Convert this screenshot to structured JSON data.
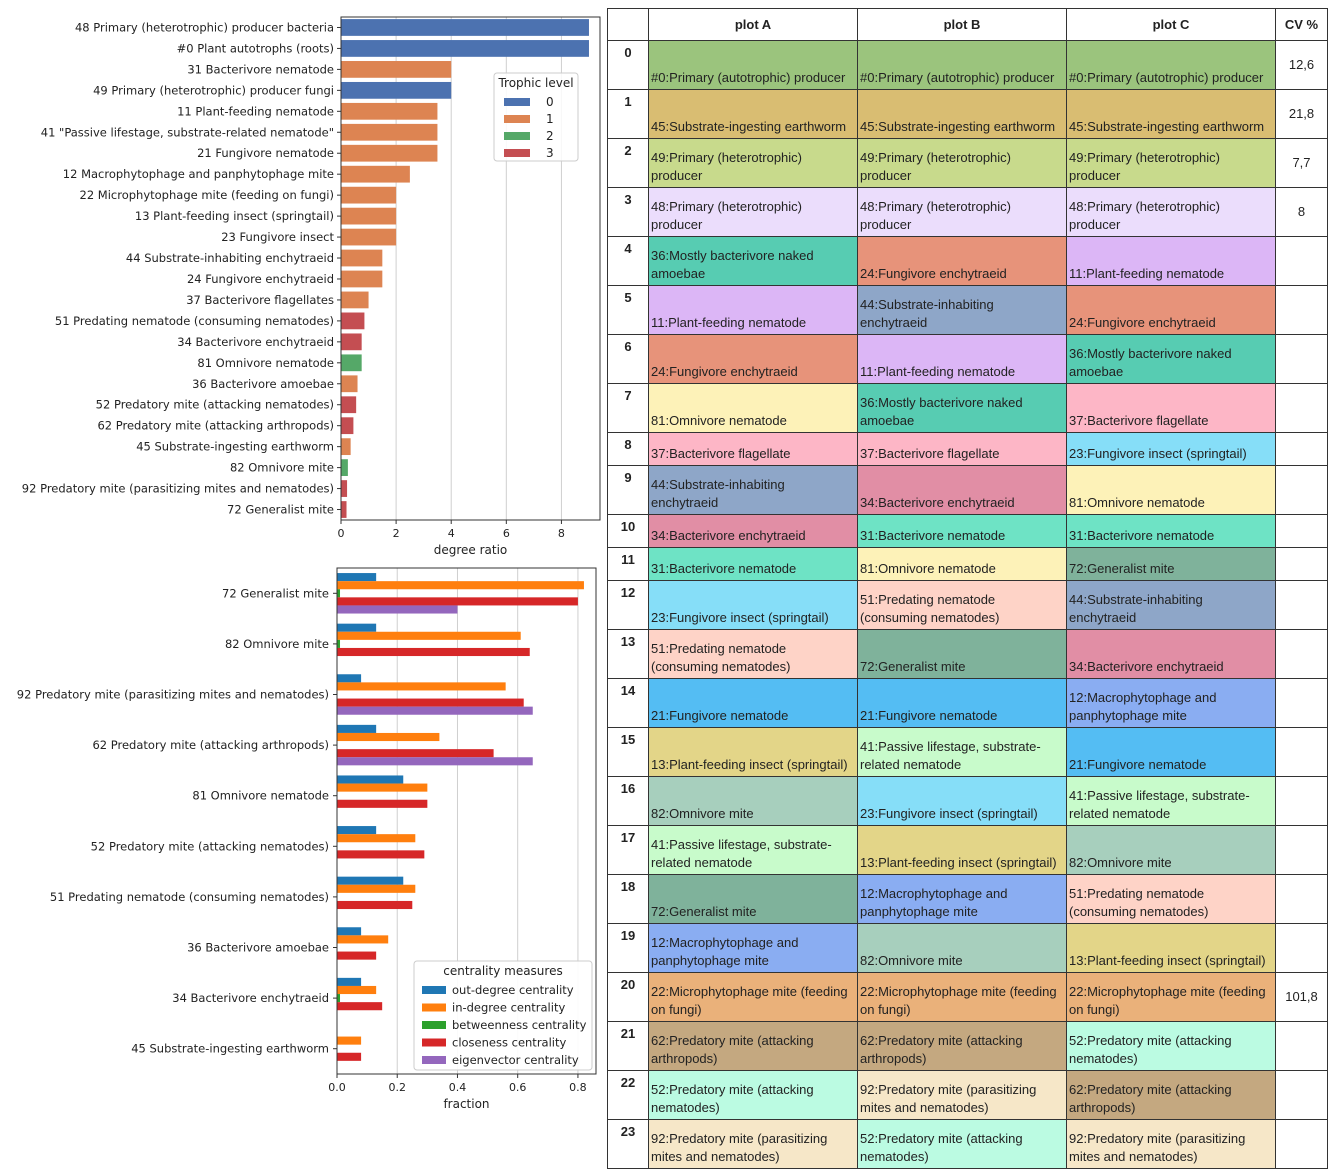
{
  "colors": {
    "trophic": {
      "0": "#4c72b0",
      "1": "#dd8452",
      "2": "#55a868",
      "3": "#c44e52"
    },
    "centrality": [
      "#1f77b4",
      "#ff7f0e",
      "#2ca02c",
      "#d62728",
      "#9467bd"
    ],
    "nodes": {
      "0": "#9bc47d",
      "45": "#d9bd72",
      "49": "#c8da8c",
      "48": "#ebddfc",
      "36": "#57ccb2",
      "24": "#e7937a",
      "11": "#dcb6f6",
      "44": "#8ea6c8",
      "81": "#fdf2b8",
      "37": "#fdb6c6",
      "34": "#e18ea5",
      "31": "#6ee3c5",
      "23": "#86def8",
      "51": "#fed3c7",
      "21": "#54bdf3",
      "13": "#e3d588",
      "82": "#a7cfbd",
      "41": "#c8fbcb",
      "72": "#7fb29b",
      "12": "#8aadf2",
      "22": "#eab17a",
      "62": "#c4a880",
      "52": "#bbfbe2",
      "92": "#f6e7c8"
    }
  },
  "chart_data": [
    {
      "type": "bar",
      "orientation": "horizontal",
      "categories": [
        "48 Primary (heterotrophic) producer bacteria",
        "#0 Plant autotrophs (roots)",
        "31 Bacterivore nematode",
        "49 Primary (heterotrophic) producer fungi",
        "11 Plant-feeding nematode",
        "41 \"Passive lifestage, substrate-related nematode\"",
        "21 Fungivore nematode",
        "12 Macrophytophage and panphytophage mite",
        "22 Microphytophage mite (feeding on fungi)",
        "13 Plant-feeding insect (springtail)",
        "23 Fungivore insect",
        "44 Substrate-inhabiting enchytraeid",
        "24 Fungivore enchytraeid",
        "37 Bacterivore flagellates",
        "51 Predating nematode (consuming nematodes)",
        "34 Bacterivore enchytraeid",
        "81 Omnivore nematode",
        "36 Bacterivore amoebae",
        "52 Predatory mite (attacking nematodes)",
        "62 Predatory mite (attacking arthropods)",
        "45 Substrate-ingesting earthworm",
        "82 Omnivore mite",
        "92 Predatory mite (parasitizing mites and nematodes)",
        "72 Generalist mite"
      ],
      "values": [
        9.0,
        9.0,
        4.0,
        4.0,
        3.5,
        3.5,
        3.5,
        2.5,
        2.0,
        2.0,
        2.0,
        1.5,
        1.5,
        1.0,
        0.85,
        0.75,
        0.75,
        0.6,
        0.55,
        0.45,
        0.35,
        0.25,
        0.22,
        0.2
      ],
      "trophic_level": [
        0,
        0,
        1,
        0,
        1,
        1,
        1,
        1,
        1,
        1,
        1,
        1,
        1,
        1,
        3,
        3,
        2,
        1,
        3,
        3,
        1,
        2,
        3,
        3
      ],
      "xlabel": "degree ratio",
      "xlim": [
        0,
        9.4
      ],
      "xticks": [
        "0",
        "2",
        "4",
        "6",
        "8"
      ],
      "legend": {
        "title": "Trophic level",
        "entries": [
          "0",
          "1",
          "2",
          "3"
        ],
        "placement": "upper-right"
      },
      "grid": "x"
    },
    {
      "type": "bar",
      "orientation": "horizontal",
      "categories": [
        "72 Generalist mite",
        "82 Omnivore mite",
        "92 Predatory mite (parasitizing mites and nematodes)",
        "62 Predatory mite (attacking arthropods)",
        "81 Omnivore nematode",
        "52 Predatory mite (attacking nematodes)",
        "51 Predating nematode (consuming nematodes)",
        "36 Bacterivore amoebae",
        "34 Bacterivore enchytraeid",
        "45 Substrate-ingesting earthworm"
      ],
      "series": [
        {
          "name": "out-degree centrality",
          "values": [
            0.13,
            0.13,
            0.08,
            0.13,
            0.22,
            0.13,
            0.22,
            0.08,
            0.08,
            0.0
          ]
        },
        {
          "name": "in-degree centrality",
          "values": [
            0.82,
            0.61,
            0.56,
            0.34,
            0.3,
            0.26,
            0.26,
            0.17,
            0.13,
            0.08
          ]
        },
        {
          "name": "betweenness centrality",
          "values": [
            0.01,
            0.01,
            0.0,
            0.0,
            0.0,
            0.0,
            0.0,
            0.0,
            0.01,
            0.0
          ]
        },
        {
          "name": "closeness centrality",
          "values": [
            0.8,
            0.64,
            0.62,
            0.52,
            0.3,
            0.29,
            0.25,
            0.13,
            0.15,
            0.08
          ]
        },
        {
          "name": "eigenvector centrality",
          "values": [
            0.4,
            0.0,
            0.65,
            0.65,
            0.0,
            0.0,
            0.0,
            0.0,
            0.0,
            0.0
          ]
        }
      ],
      "xlabel": "fraction",
      "xlim": [
        0,
        0.86
      ],
      "xticks": [
        "0.0",
        "0.2",
        "0.4",
        "0.6",
        "0.8"
      ],
      "legend": {
        "title": "centrality measures",
        "placement": "lower-right"
      },
      "grid": "x"
    }
  ],
  "table": {
    "headers": [
      "",
      "plot A",
      "plot B",
      "plot C",
      "CV %"
    ],
    "rows": [
      {
        "rank": "0",
        "a": "#0:Primary (autotrophic) producer",
        "ac": "0",
        "b": "#0:Primary (autotrophic) producer",
        "bc": "0",
        "c": "#0:Primary (autotrophic) producer",
        "cc": "0",
        "cv": "12,6"
      },
      {
        "rank": "1",
        "a": "45:Substrate-ingesting earthworm",
        "ac": "45",
        "b": "45:Substrate-ingesting earthworm",
        "bc": "45",
        "c": "45:Substrate-ingesting earthworm",
        "cc": "45",
        "cv": "21,8"
      },
      {
        "rank": "2",
        "a": "49:Primary (heterotrophic) producer",
        "ac": "49",
        "b": "49:Primary (heterotrophic) producer",
        "bc": "49",
        "c": "49:Primary (heterotrophic) producer",
        "cc": "49",
        "cv": "7,7"
      },
      {
        "rank": "3",
        "a": "48:Primary (heterotrophic) producer",
        "ac": "48",
        "b": "48:Primary (heterotrophic) producer",
        "bc": "48",
        "c": "48:Primary (heterotrophic) producer",
        "cc": "48",
        "cv": "8"
      },
      {
        "rank": "4",
        "a": "36:Mostly bacterivore naked amoebae",
        "ac": "36",
        "b": "24:Fungivore enchytraeid",
        "bc": "24",
        "c": "11:Plant-feeding nematode",
        "cc": "11",
        "cv": ""
      },
      {
        "rank": "5",
        "a": "11:Plant-feeding nematode",
        "ac": "11",
        "b": "44:Substrate-inhabiting enchytraeid",
        "bc": "44",
        "c": "24:Fungivore enchytraeid",
        "cc": "24",
        "cv": ""
      },
      {
        "rank": "6",
        "a": "24:Fungivore enchytraeid",
        "ac": "24",
        "b": "11:Plant-feeding nematode",
        "bc": "11",
        "c": "36:Mostly bacterivore naked amoebae",
        "cc": "36",
        "cv": ""
      },
      {
        "rank": "7",
        "a": "81:Omnivore nematode",
        "ac": "81",
        "b": "36:Mostly bacterivore naked amoebae",
        "bc": "36",
        "c": "37:Bacterivore flagellate",
        "cc": "37",
        "cv": ""
      },
      {
        "rank": "8",
        "a": "37:Bacterivore flagellate",
        "ac": "37",
        "b": "37:Bacterivore flagellate",
        "bc": "37",
        "c": "23:Fungivore insect (springtail)",
        "cc": "23",
        "cv": ""
      },
      {
        "rank": "9",
        "a": "44:Substrate-inhabiting enchytraeid",
        "ac": "44",
        "b": "34:Bacterivore enchytraeid",
        "bc": "34",
        "c": "81:Omnivore nematode",
        "cc": "81",
        "cv": ""
      },
      {
        "rank": "10",
        "a": "34:Bacterivore enchytraeid",
        "ac": "34",
        "b": "31:Bacterivore nematode",
        "bc": "31",
        "c": "31:Bacterivore nematode",
        "cc": "31",
        "cv": ""
      },
      {
        "rank": "11",
        "a": "31:Bacterivore nematode",
        "ac": "31",
        "b": "81:Omnivore nematode",
        "bc": "81",
        "c": "72:Generalist mite",
        "cc": "72",
        "cv": ""
      },
      {
        "rank": "12",
        "a": "23:Fungivore insect (springtail)",
        "ac": "23",
        "b": "51:Predating nematode (consuming nematodes)",
        "bc": "51",
        "c": "44:Substrate-inhabiting enchytraeid",
        "cc": "44",
        "cv": ""
      },
      {
        "rank": "13",
        "a": "51:Predating nematode (consuming nematodes)",
        "ac": "51",
        "b": "72:Generalist mite",
        "bc": "72",
        "c": "34:Bacterivore enchytraeid",
        "cc": "34",
        "cv": ""
      },
      {
        "rank": "14",
        "a": "21:Fungivore nematode",
        "ac": "21",
        "b": "21:Fungivore nematode",
        "bc": "21",
        "c": "12:Macrophytophage and panphytophage mite",
        "cc": "12",
        "cv": ""
      },
      {
        "rank": "15",
        "a": "13:Plant-feeding insect (springtail)",
        "ac": "13",
        "b": "41:Passive lifestage, substrate-related nematode",
        "bc": "41",
        "c": "21:Fungivore nematode",
        "cc": "21",
        "cv": ""
      },
      {
        "rank": "16",
        "a": "82:Omnivore mite",
        "ac": "82",
        "b": "23:Fungivore insect (springtail)",
        "bc": "23",
        "c": "41:Passive lifestage, substrate-related nematode",
        "cc": "41",
        "cv": ""
      },
      {
        "rank": "17",
        "a": "41:Passive lifestage, substrate-related nematode",
        "ac": "41",
        "b": "13:Plant-feeding insect (springtail)",
        "bc": "13",
        "c": "82:Omnivore mite",
        "cc": "82",
        "cv": ""
      },
      {
        "rank": "18",
        "a": "72:Generalist mite",
        "ac": "72",
        "b": "12:Macrophytophage and panphytophage mite",
        "bc": "12",
        "c": "51:Predating nematode (consuming nematodes)",
        "cc": "51",
        "cv": ""
      },
      {
        "rank": "19",
        "a": "12:Macrophytophage and panphytophage mite",
        "ac": "12",
        "b": "82:Omnivore mite",
        "bc": "82",
        "c": "13:Plant-feeding insect (springtail)",
        "cc": "13",
        "cv": ""
      },
      {
        "rank": "20",
        "a": "22:Microphytophage mite (feeding on fungi)",
        "ac": "22",
        "b": "22:Microphytophage mite (feeding on fungi)",
        "bc": "22",
        "c": "22:Microphytophage mite (feeding on fungi)",
        "cc": "22",
        "cv": "101,8"
      },
      {
        "rank": "21",
        "a": "62:Predatory mite (attacking arthropods)",
        "ac": "62",
        "b": "62:Predatory mite (attacking arthropods)",
        "bc": "62",
        "c": "52:Predatory mite (attacking nematodes)",
        "cc": "52",
        "cv": ""
      },
      {
        "rank": "22",
        "a": "52:Predatory mite (attacking nematodes)",
        "ac": "52",
        "b": "92:Predatory mite (parasitizing mites and nematodes)",
        "bc": "92",
        "c": "62:Predatory mite (attacking arthropods)",
        "cc": "62",
        "cv": ""
      },
      {
        "rank": "23",
        "a": "92:Predatory mite (parasitizing mites and nematodes)",
        "ac": "92",
        "b": "52:Predatory mite (attacking nematodes)",
        "bc": "52",
        "c": "92:Predatory mite (parasitizing mites and nematodes)",
        "cc": "92",
        "cv": ""
      }
    ]
  }
}
